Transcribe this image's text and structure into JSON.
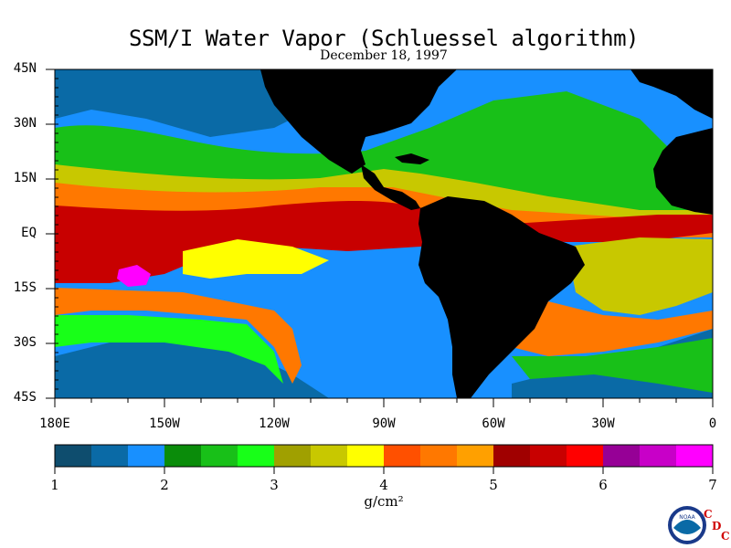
{
  "title": "SSM/I Water Vapor (Schluessel algorithm)",
  "date": "December 18, 1997",
  "lat_labels": [
    "45N",
    "30N",
    "15N",
    "EQ",
    "15S",
    "30S",
    "45S"
  ],
  "lon_labels": [
    "180E",
    "150W",
    "120W",
    "90W",
    "60W",
    "30W",
    "0"
  ],
  "colorbar": {
    "tick_labels": [
      "1",
      "2",
      "3",
      "4",
      "5",
      "6",
      "7"
    ],
    "units": "g/cm²",
    "colors": [
      "#0e4d6e",
      "#0a6aa6",
      "#1890ff",
      "#0a8c0a",
      "#18c018",
      "#18ff18",
      "#a0a000",
      "#c8c800",
      "#ffff00",
      "#ff5000",
      "#ff7800",
      "#ffa000",
      "#a00000",
      "#c80000",
      "#ff0000",
      "#960096",
      "#c800c8",
      "#ff00ff"
    ]
  },
  "logo": {
    "emblem_text": "NOAA",
    "letters": [
      "C",
      "D",
      "C"
    ]
  },
  "map_colors": {
    "land": "#000000",
    "ocean_low": "#1890ff",
    "ocean_mid": "#18c018",
    "ocean_high": "#c80000"
  }
}
